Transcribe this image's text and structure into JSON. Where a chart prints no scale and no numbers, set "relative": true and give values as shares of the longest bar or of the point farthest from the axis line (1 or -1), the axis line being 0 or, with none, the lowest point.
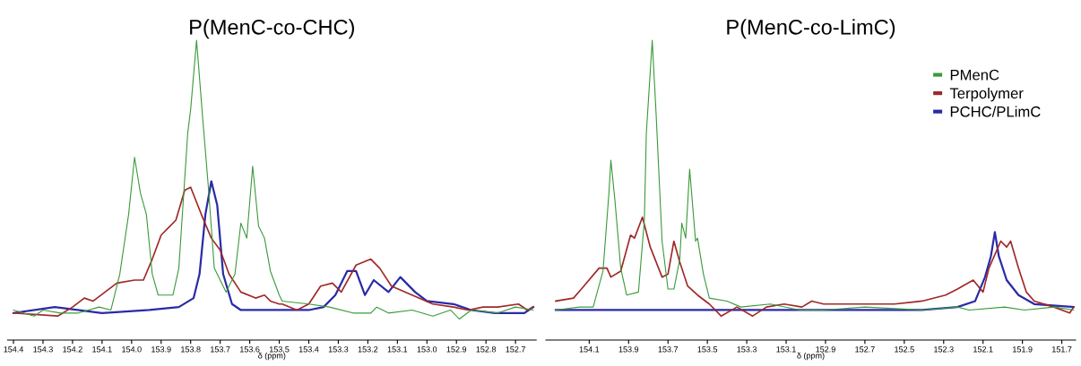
{
  "chart_data": [
    {
      "type": "line",
      "title": "P(MenC-co-CHC)",
      "xlabel": "δ (ppm)",
      "relative": true,
      "grid": false,
      "legend": false,
      "marker": "none",
      "line_style": "solid",
      "xlim": [
        154.42,
        152.63
      ],
      "xticks": [
        154.4,
        154.3,
        154.2,
        154.1,
        {
          "value": 154.0,
          "label": "154.0"
        },
        153.9,
        153.8,
        153.7,
        153.6,
        153.5,
        153.4,
        153.3,
        153.2,
        153.1,
        {
          "value": 153.0,
          "label": "153.0"
        },
        152.9,
        152.8,
        152.7
      ],
      "series": [
        {
          "color": "#3a9a3a",
          "x": [
            154.4,
            154.33,
            154.3,
            154.24,
            154.18,
            154.11,
            154.07,
            154.04,
            154.01,
            153.99,
            153.97,
            153.95,
            153.93,
            153.91,
            153.86,
            153.84,
            153.81,
            153.8,
            153.78,
            153.76,
            153.74,
            153.72,
            153.68,
            153.65,
            153.63,
            153.61,
            153.59,
            153.57,
            153.55,
            153.53,
            153.5,
            153.49,
            153.4,
            153.33,
            153.25,
            153.19,
            153.17,
            153.13,
            153.05,
            152.98,
            152.92,
            152.89,
            152.85,
            152.76,
            152.7,
            152.64
          ],
          "values": [
            0.1,
            0.08,
            0.1,
            0.09,
            0.09,
            0.11,
            0.1,
            0.22,
            0.42,
            0.61,
            0.49,
            0.42,
            0.22,
            0.15,
            0.15,
            0.24,
            0.69,
            0.77,
            1.0,
            0.75,
            0.51,
            0.24,
            0.16,
            0.22,
            0.39,
            0.34,
            0.58,
            0.38,
            0.34,
            0.23,
            0.15,
            0.13,
            0.12,
            0.11,
            0.09,
            0.09,
            0.11,
            0.09,
            0.1,
            0.08,
            0.1,
            0.07,
            0.1,
            0.09,
            0.11,
            0.1
          ]
        },
        {
          "color": "#a02828",
          "x": [
            154.4,
            154.25,
            154.2,
            154.16,
            154.13,
            154.05,
            153.99,
            153.96,
            153.93,
            153.9,
            153.85,
            153.82,
            153.8,
            153.76,
            153.73,
            153.7,
            153.67,
            153.63,
            153.58,
            153.55,
            153.53,
            153.5,
            153.49,
            153.44,
            153.4,
            153.36,
            153.32,
            153.29,
            153.24,
            153.19,
            153.16,
            153.12,
            153.05,
            152.98,
            152.91,
            152.86,
            152.81,
            152.76,
            152.69,
            152.66,
            152.64
          ],
          "values": [
            0.09,
            0.08,
            0.11,
            0.14,
            0.13,
            0.19,
            0.2,
            0.2,
            0.27,
            0.35,
            0.4,
            0.5,
            0.51,
            0.41,
            0.34,
            0.3,
            0.22,
            0.16,
            0.14,
            0.15,
            0.13,
            0.12,
            0.12,
            0.1,
            0.12,
            0.18,
            0.19,
            0.16,
            0.25,
            0.27,
            0.24,
            0.18,
            0.15,
            0.12,
            0.11,
            0.1,
            0.11,
            0.11,
            0.12,
            0.1,
            0.11
          ]
        },
        {
          "color": "#2a2aa8",
          "x": [
            154.4,
            154.26,
            154.1,
            153.94,
            153.84,
            153.79,
            153.77,
            153.75,
            153.73,
            153.71,
            153.69,
            153.66,
            153.63,
            153.5,
            153.49,
            153.4,
            153.35,
            153.31,
            153.27,
            153.24,
            153.21,
            153.18,
            153.13,
            153.09,
            153.04,
            153.0,
            152.91,
            152.85,
            152.77,
            152.67,
            152.64
          ],
          "values": [
            0.09,
            0.11,
            0.09,
            0.1,
            0.11,
            0.14,
            0.22,
            0.42,
            0.53,
            0.45,
            0.22,
            0.12,
            0.1,
            0.1,
            0.1,
            0.1,
            0.11,
            0.15,
            0.23,
            0.23,
            0.15,
            0.2,
            0.16,
            0.21,
            0.16,
            0.13,
            0.12,
            0.1,
            0.09,
            0.09,
            0.11
          ]
        }
      ]
    },
    {
      "type": "line",
      "title": "P(MenC-co-LimC)",
      "xlabel": "δ (ppm)",
      "relative": true,
      "grid": false,
      "legend": "top right",
      "marker": "none",
      "line_style": "solid",
      "xlim": [
        154.32,
        151.63
      ],
      "xticks": [
        154.1,
        153.9,
        153.7,
        153.5,
        153.3,
        153.1,
        152.9,
        152.7,
        152.5,
        152.3,
        152.1,
        151.9,
        151.7
      ],
      "series": [
        {
          "name": "PMenC",
          "color": "#3a9a3a",
          "x": [
            154.27,
            154.15,
            154.08,
            154.03,
            154.0,
            153.99,
            153.97,
            153.94,
            153.91,
            153.85,
            153.82,
            153.81,
            153.78,
            153.76,
            153.73,
            153.7,
            153.67,
            153.64,
            153.63,
            153.61,
            153.59,
            153.56,
            153.55,
            153.52,
            153.49,
            153.4,
            153.33,
            153.18,
            153.03,
            152.96,
            152.91,
            152.7,
            152.41,
            152.23,
            152.17,
            151.99,
            151.89,
            151.74,
            151.64
          ],
          "values": [
            0.1,
            0.11,
            0.11,
            0.23,
            0.49,
            0.6,
            0.47,
            0.24,
            0.15,
            0.16,
            0.4,
            0.69,
            1.0,
            0.75,
            0.33,
            0.17,
            0.17,
            0.27,
            0.39,
            0.34,
            0.57,
            0.33,
            0.34,
            0.22,
            0.14,
            0.13,
            0.11,
            0.12,
            0.1,
            0.1,
            0.1,
            0.11,
            0.1,
            0.11,
            0.1,
            0.11,
            0.1,
            0.11,
            0.1
          ]
        },
        {
          "name": "Terpolymer",
          "color": "#a02828",
          "x": [
            154.27,
            154.18,
            154.14,
            154.05,
            154.01,
            153.99,
            153.94,
            153.89,
            153.87,
            153.83,
            153.79,
            153.73,
            153.7,
            153.67,
            153.64,
            153.6,
            153.55,
            153.49,
            153.43,
            153.35,
            153.27,
            153.2,
            153.11,
            153.02,
            152.97,
            152.91,
            152.7,
            152.55,
            152.41,
            152.29,
            152.23,
            152.15,
            152.1,
            152.07,
            152.01,
            151.98,
            151.96,
            151.92,
            151.88,
            151.84,
            151.74,
            151.66,
            151.64
          ],
          "values": [
            0.13,
            0.14,
            0.17,
            0.24,
            0.24,
            0.21,
            0.23,
            0.35,
            0.34,
            0.41,
            0.31,
            0.21,
            0.22,
            0.33,
            0.26,
            0.18,
            0.15,
            0.12,
            0.08,
            0.11,
            0.08,
            0.11,
            0.12,
            0.11,
            0.13,
            0.12,
            0.12,
            0.12,
            0.13,
            0.15,
            0.17,
            0.2,
            0.16,
            0.24,
            0.33,
            0.31,
            0.33,
            0.24,
            0.16,
            0.13,
            0.11,
            0.09,
            0.11
          ]
        },
        {
          "name": "PCHC/PLimC",
          "color": "#2a2aa8",
          "x": [
            154.27,
            154.15,
            154.0,
            153.7,
            153.4,
            153.11,
            152.96,
            152.7,
            152.41,
            152.23,
            152.14,
            152.09,
            152.06,
            152.04,
            152.02,
            151.98,
            151.92,
            151.84,
            151.64
          ],
          "values": [
            0.1,
            0.1,
            0.1,
            0.1,
            0.1,
            0.1,
            0.1,
            0.1,
            0.1,
            0.11,
            0.13,
            0.21,
            0.28,
            0.36,
            0.28,
            0.2,
            0.15,
            0.12,
            0.11
          ]
        }
      ]
    }
  ]
}
